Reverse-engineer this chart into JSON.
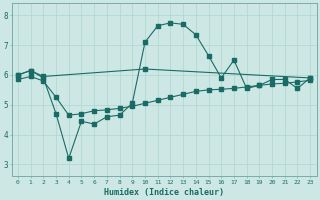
{
  "xlabel": "Humidex (Indice chaleur)",
  "bg_color": "#cde8e4",
  "grid_color": "#b0d4ce",
  "line_color": "#1a6b65",
  "xlim": [
    -0.5,
    23.5
  ],
  "ylim": [
    2.6,
    8.4
  ],
  "yticks": [
    3,
    4,
    5,
    6,
    7,
    8
  ],
  "xticks": [
    0,
    1,
    2,
    3,
    4,
    5,
    6,
    7,
    8,
    9,
    10,
    11,
    12,
    13,
    14,
    15,
    16,
    17,
    18,
    19,
    20,
    21,
    22,
    23
  ],
  "line1_x": [
    0,
    1,
    2,
    10,
    23
  ],
  "line1_y": [
    6.0,
    6.15,
    5.95,
    6.2,
    5.9
  ],
  "line2_x": [
    0,
    1,
    2,
    3,
    4,
    5,
    6,
    7,
    8,
    9,
    10,
    11,
    12,
    13,
    14,
    15,
    16,
    17,
    18,
    19,
    20,
    21,
    22,
    23
  ],
  "line2_y": [
    6.0,
    6.15,
    5.9,
    4.7,
    3.2,
    4.45,
    4.35,
    4.6,
    4.65,
    5.05,
    7.1,
    7.65,
    7.75,
    7.7,
    7.35,
    6.65,
    5.9,
    6.5,
    5.55,
    5.65,
    5.85,
    5.85,
    5.55,
    5.9
  ],
  "line3_x": [
    0,
    1,
    2,
    3,
    4,
    5,
    6,
    7,
    8,
    9,
    10,
    11,
    12,
    13,
    14,
    15,
    16,
    17,
    18,
    19,
    20,
    21,
    22,
    23
  ],
  "line3_y": [
    5.85,
    5.95,
    5.8,
    5.25,
    4.65,
    4.7,
    4.8,
    4.83,
    4.88,
    4.95,
    5.05,
    5.15,
    5.25,
    5.35,
    5.45,
    5.5,
    5.52,
    5.55,
    5.6,
    5.65,
    5.7,
    5.72,
    5.77,
    5.82
  ]
}
